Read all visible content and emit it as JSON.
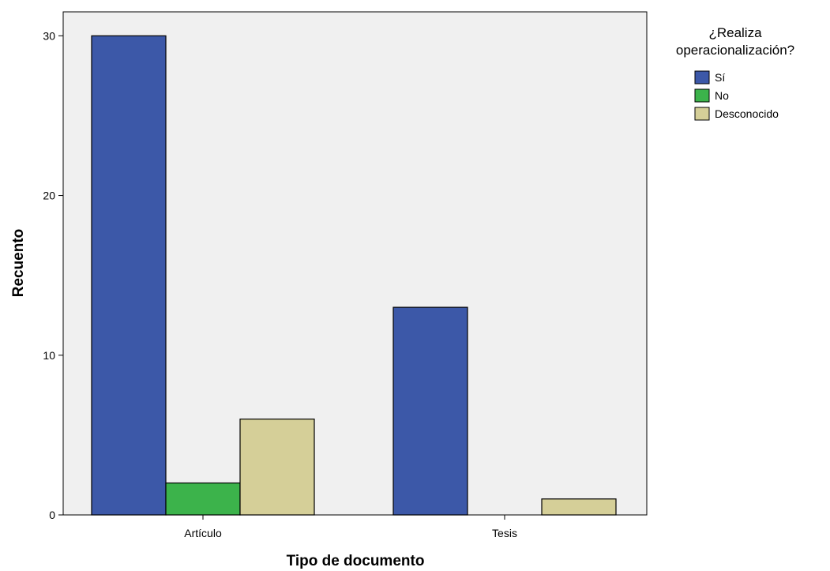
{
  "chart_data": {
    "type": "bar",
    "title": "",
    "xlabel": "Tipo de documento",
    "ylabel": "Recuento",
    "categories": [
      "Artículo",
      "Tesis"
    ],
    "series": [
      {
        "name": "Sí",
        "values": [
          30,
          13
        ],
        "color": "#3c58a8"
      },
      {
        "name": "No",
        "values": [
          2,
          0
        ],
        "color": "#3cb34b"
      },
      {
        "name": "Desconocido",
        "values": [
          6,
          1
        ],
        "color": "#d5cf98"
      }
    ],
    "ylim": [
      0,
      31.5
    ],
    "yticks": [
      0,
      10,
      20,
      30
    ],
    "legend": {
      "title_lines": [
        "¿Realiza",
        "operacionalización?"
      ],
      "position": "top-right"
    },
    "plot_background": "#f0f0f0",
    "grid": false
  }
}
